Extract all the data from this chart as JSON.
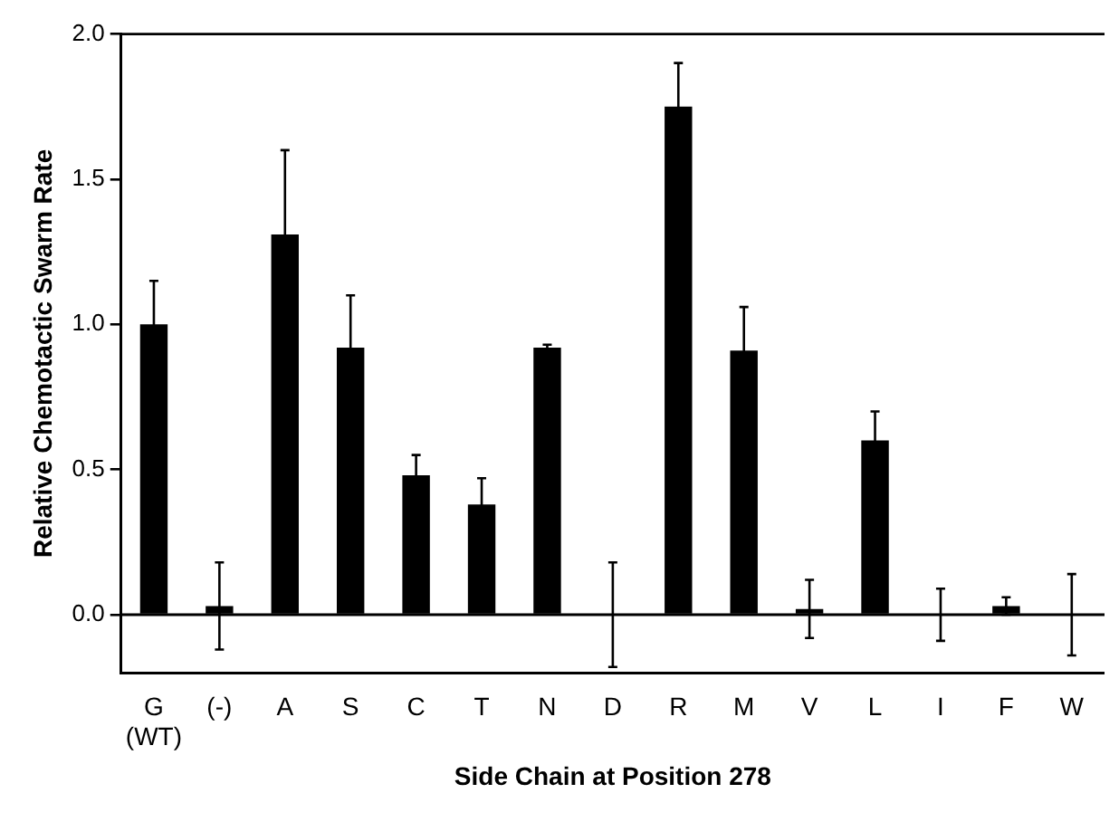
{
  "chart_data": {
    "type": "bar",
    "xlabel": "Side Chain at Position 278",
    "ylabel": "Relative Chemotactic Swarm Rate",
    "categories": [
      "G\n(WT)",
      "(-)",
      "A",
      "S",
      "C",
      "T",
      "N",
      "D",
      "R",
      "M",
      "V",
      "L",
      "I",
      "F",
      "W"
    ],
    "values": [
      1.0,
      0.03,
      1.31,
      0.92,
      0.48,
      0.38,
      0.92,
      0.0,
      1.75,
      0.91,
      0.02,
      0.6,
      0.0,
      0.03,
      0.0
    ],
    "errors": [
      0.15,
      0.15,
      0.29,
      0.18,
      0.07,
      0.09,
      0.01,
      0.18,
      0.15,
      0.15,
      0.1,
      0.1,
      0.09,
      0.03,
      0.14
    ],
    "color": "#000000",
    "ylim": [
      -0.2,
      2.0
    ],
    "yticks": [
      {
        "value": 0,
        "label": "0.0"
      },
      {
        "value": 0.5,
        "label": "0.5"
      },
      {
        "value": 1,
        "label": "1.0"
      },
      {
        "value": 1.5,
        "label": "1.5"
      },
      {
        "value": 2,
        "label": "2.0"
      }
    ],
    "ref_lines": [
      {
        "axis": "y",
        "value": 0,
        "color": "#000000"
      }
    ],
    "grid": false,
    "legend": false
  }
}
